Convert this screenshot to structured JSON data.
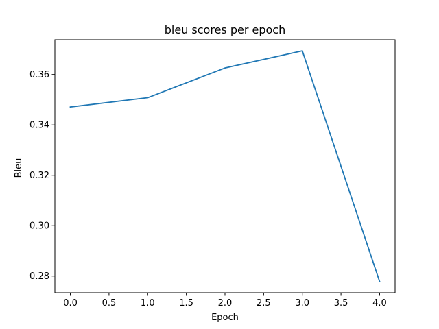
{
  "chart_data": {
    "type": "line",
    "title": "bleu scores per epoch",
    "xlabel": "Epoch",
    "ylabel": "Bleu",
    "x": [
      0,
      1,
      2,
      3,
      4
    ],
    "series": [
      {
        "values": [
          0.3471,
          0.3508,
          0.3626,
          0.3694,
          0.2778
        ],
        "color": "#1f77b4"
      }
    ],
    "xlim": [
      -0.2,
      4.2
    ],
    "ylim": [
      0.2734,
      0.3738
    ],
    "xticks": [
      0.0,
      0.5,
      1.0,
      1.5,
      2.0,
      2.5,
      3.0,
      3.5,
      4.0
    ],
    "xtick_labels": [
      "0.0",
      "0.5",
      "1.0",
      "1.5",
      "2.0",
      "2.5",
      "3.0",
      "3.5",
      "4.0"
    ],
    "yticks": [
      0.28,
      0.3,
      0.32,
      0.34,
      0.36
    ],
    "ytick_labels": [
      "0.28",
      "0.30",
      "0.32",
      "0.34",
      "0.36"
    ],
    "grid": false,
    "legend": false
  }
}
